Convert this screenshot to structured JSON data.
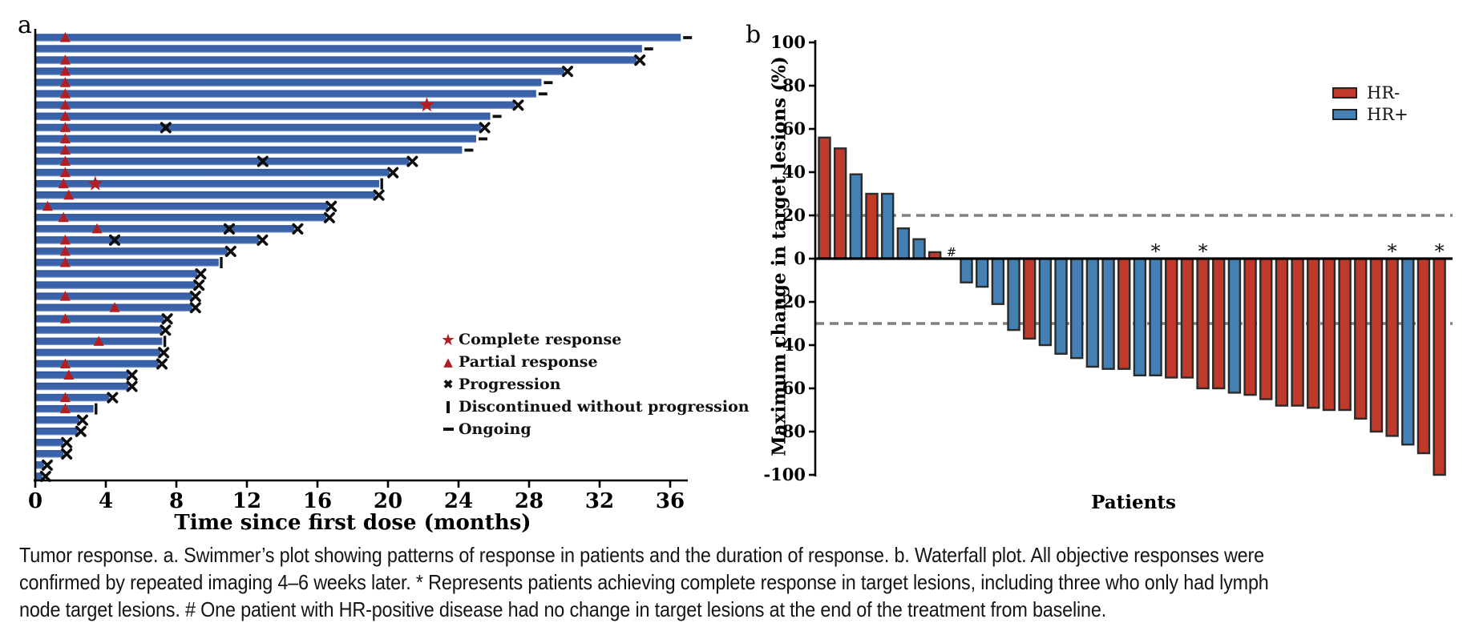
{
  "figure": {
    "panel_a_label": "a",
    "panel_b_label": "b"
  },
  "colors": {
    "swimmer_bar": "#3a62a8",
    "swimmer_bar_dark_edge": "#2f549c",
    "swimmer_bar_light_edge": "#8ea7cf",
    "marker_red": "#b51e20",
    "hr_neg_red": "#c03a2b",
    "hr_pos_blue": "#4381b5",
    "bar_outline": "#2b2b2b",
    "dashed_reference": "#7f7f7f",
    "axis_black": "#000000"
  },
  "caption": {
    "lines": [
      "Tumor response. a. Swimmer’s plot showing patterns of response in patients and the duration of response. b. Waterfall plot. All objective responses were",
      "confirmed by repeated imaging 4–6 weeks later. * Represents patients achieving complete response in target lesions, including three who only had lymph",
      "node target lesions. # One patient with HR-positive disease had no change in target lesions at the end of the treatment from baseline."
    ]
  },
  "chart_data": [
    {
      "type": "bar",
      "subtype": "swimmer",
      "xlabel": "Time since first dose (months)",
      "x_ticks": [
        0,
        4,
        8,
        12,
        16,
        20,
        24,
        28,
        32,
        36
      ],
      "xlim": [
        0,
        37
      ],
      "grid": false,
      "legend_position": "right-middle",
      "legend": [
        {
          "marker": "star",
          "label": "Complete response"
        },
        {
          "marker": "triangle",
          "label": "Partial response"
        },
        {
          "marker": "cross",
          "label": "Progression"
        },
        {
          "marker": "tick",
          "label": "Discontinued without progression"
        },
        {
          "marker": "dash",
          "label": "Ongoing"
        }
      ],
      "patients": [
        {
          "dur": 36.6,
          "pr": [
            1.7
          ],
          "cr": [],
          "x": [],
          "end": "ongoing"
        },
        {
          "dur": 34.4,
          "pr": [],
          "cr": [],
          "x": [],
          "end": "ongoing"
        },
        {
          "dur": 34.1,
          "pr": [
            1.7
          ],
          "cr": [],
          "x": [],
          "end": "progression"
        },
        {
          "dur": 30.0,
          "pr": [
            1.7
          ],
          "cr": [],
          "x": [],
          "end": "progression"
        },
        {
          "dur": 28.7,
          "pr": [
            1.7
          ],
          "cr": [],
          "x": [],
          "end": "ongoing"
        },
        {
          "dur": 28.4,
          "pr": [
            1.7
          ],
          "cr": [],
          "x": [],
          "end": "ongoing"
        },
        {
          "dur": 27.2,
          "pr": [
            1.7
          ],
          "cr": [
            22.2
          ],
          "x": [],
          "end": "progression"
        },
        {
          "dur": 25.8,
          "pr": [
            1.7
          ],
          "cr": [],
          "x": [],
          "end": "ongoing"
        },
        {
          "dur": 25.3,
          "pr": [
            1.7
          ],
          "cr": [],
          "x": [
            7.4
          ],
          "end": "progression"
        },
        {
          "dur": 25.0,
          "pr": [
            1.7
          ],
          "cr": [],
          "x": [],
          "end": "ongoing"
        },
        {
          "dur": 24.2,
          "pr": [
            1.7
          ],
          "cr": [],
          "x": [],
          "end": "ongoing"
        },
        {
          "dur": 21.2,
          "pr": [
            1.7
          ],
          "cr": [],
          "x": [
            12.9
          ],
          "end": "progression"
        },
        {
          "dur": 20.1,
          "pr": [
            1.7
          ],
          "cr": [],
          "x": [],
          "end": "progression"
        },
        {
          "dur": 19.5,
          "pr": [
            1.6
          ],
          "cr": [
            3.4
          ],
          "x": [],
          "end": "discontinued"
        },
        {
          "dur": 19.3,
          "pr": [
            1.9
          ],
          "cr": [],
          "x": [],
          "end": "progression"
        },
        {
          "dur": 16.6,
          "pr": [
            0.7
          ],
          "cr": [],
          "x": [],
          "end": "progression"
        },
        {
          "dur": 16.5,
          "pr": [
            1.6
          ],
          "cr": [],
          "x": [],
          "end": "progression"
        },
        {
          "dur": 14.7,
          "pr": [
            3.5
          ],
          "cr": [],
          "x": [
            11.0
          ],
          "end": "progression"
        },
        {
          "dur": 12.7,
          "pr": [
            1.7
          ],
          "cr": [],
          "x": [
            4.5
          ],
          "end": "progression"
        },
        {
          "dur": 10.9,
          "pr": [
            1.7
          ],
          "cr": [],
          "x": [],
          "end": "progression"
        },
        {
          "dur": 10.4,
          "pr": [
            1.7
          ],
          "cr": [],
          "x": [],
          "end": "discontinued"
        },
        {
          "dur": 9.2,
          "pr": [],
          "cr": [],
          "x": [],
          "end": "progression"
        },
        {
          "dur": 9.1,
          "pr": [],
          "cr": [],
          "x": [],
          "end": "progression"
        },
        {
          "dur": 8.9,
          "pr": [
            1.7
          ],
          "cr": [],
          "x": [],
          "end": "progression"
        },
        {
          "dur": 8.9,
          "pr": [
            4.5
          ],
          "cr": [],
          "x": [],
          "end": "progression"
        },
        {
          "dur": 7.3,
          "pr": [
            1.7
          ],
          "cr": [],
          "x": [],
          "end": "progression"
        },
        {
          "dur": 7.2,
          "pr": [],
          "cr": [],
          "x": [],
          "end": "progression"
        },
        {
          "dur": 7.2,
          "pr": [
            3.6
          ],
          "cr": [],
          "x": [],
          "end": "discontinued"
        },
        {
          "dur": 7.1,
          "pr": [],
          "cr": [],
          "x": [],
          "end": "progression"
        },
        {
          "dur": 7.0,
          "pr": [
            1.7
          ],
          "cr": [],
          "x": [],
          "end": "progression"
        },
        {
          "dur": 5.3,
          "pr": [
            1.9
          ],
          "cr": [],
          "x": [],
          "end": "progression"
        },
        {
          "dur": 5.3,
          "pr": [],
          "cr": [],
          "x": [],
          "end": "progression"
        },
        {
          "dur": 4.2,
          "pr": [
            1.7
          ],
          "cr": [],
          "x": [],
          "end": "progression"
        },
        {
          "dur": 3.3,
          "pr": [
            1.7
          ],
          "cr": [],
          "x": [],
          "end": "discontinued"
        },
        {
          "dur": 2.5,
          "pr": [],
          "cr": [],
          "x": [],
          "end": "progression"
        },
        {
          "dur": 2.4,
          "pr": [],
          "cr": [],
          "x": [],
          "end": "progression"
        },
        {
          "dur": 1.6,
          "pr": [],
          "cr": [],
          "x": [],
          "end": "progression"
        },
        {
          "dur": 1.6,
          "pr": [],
          "cr": [],
          "x": [],
          "end": "progression"
        },
        {
          "dur": 0.5,
          "pr": [],
          "cr": [],
          "x": [],
          "end": "progression"
        },
        {
          "dur": 0.4,
          "pr": [],
          "cr": [],
          "x": [],
          "end": "progression"
        }
      ]
    },
    {
      "type": "bar",
      "subtype": "waterfall",
      "ylabel": "Maximum change in target lesions (%)",
      "xlabel": "Patients",
      "ylim": [
        -100,
        100
      ],
      "y_ticks": [
        100,
        80,
        60,
        40,
        20,
        0,
        -20,
        -40,
        -60,
        -80,
        -100
      ],
      "reference_lines": [
        20,
        -30
      ],
      "grid": false,
      "legend_position": "top-right",
      "legend": [
        {
          "label": "HR-",
          "color_key": "hr_neg_red"
        },
        {
          "label": "HR+",
          "color_key": "hr_pos_blue"
        }
      ],
      "bars": [
        {
          "v": 56,
          "hr": "-"
        },
        {
          "v": 51,
          "hr": "-"
        },
        {
          "v": 39,
          "hr": "+"
        },
        {
          "v": 30,
          "hr": "-"
        },
        {
          "v": 30,
          "hr": "+"
        },
        {
          "v": 14,
          "hr": "+"
        },
        {
          "v": 9,
          "hr": "+"
        },
        {
          "v": 3,
          "hr": "-"
        },
        {
          "v": 0,
          "hr": "+",
          "mark": "#"
        },
        {
          "v": -11,
          "hr": "+"
        },
        {
          "v": -13,
          "hr": "+"
        },
        {
          "v": -21,
          "hr": "+"
        },
        {
          "v": -33,
          "hr": "+"
        },
        {
          "v": -37,
          "hr": "-"
        },
        {
          "v": -40,
          "hr": "+"
        },
        {
          "v": -44,
          "hr": "+"
        },
        {
          "v": -46,
          "hr": "+"
        },
        {
          "v": -50,
          "hr": "+"
        },
        {
          "v": -51,
          "hr": "+"
        },
        {
          "v": -51,
          "hr": "-"
        },
        {
          "v": -54,
          "hr": "+"
        },
        {
          "v": -54,
          "hr": "+",
          "mark": "*"
        },
        {
          "v": -55,
          "hr": "-"
        },
        {
          "v": -55,
          "hr": "-"
        },
        {
          "v": -60,
          "hr": "-",
          "mark": "*"
        },
        {
          "v": -60,
          "hr": "-"
        },
        {
          "v": -62,
          "hr": "+"
        },
        {
          "v": -63,
          "hr": "-"
        },
        {
          "v": -65,
          "hr": "-"
        },
        {
          "v": -68,
          "hr": "-"
        },
        {
          "v": -68,
          "hr": "-"
        },
        {
          "v": -69,
          "hr": "-"
        },
        {
          "v": -70,
          "hr": "-"
        },
        {
          "v": -70,
          "hr": "-"
        },
        {
          "v": -74,
          "hr": "-"
        },
        {
          "v": -80,
          "hr": "-"
        },
        {
          "v": -82,
          "hr": "-",
          "mark": "*"
        },
        {
          "v": -86,
          "hr": "+"
        },
        {
          "v": -90,
          "hr": "-"
        },
        {
          "v": -100,
          "hr": "-",
          "mark": "*"
        }
      ]
    }
  ]
}
